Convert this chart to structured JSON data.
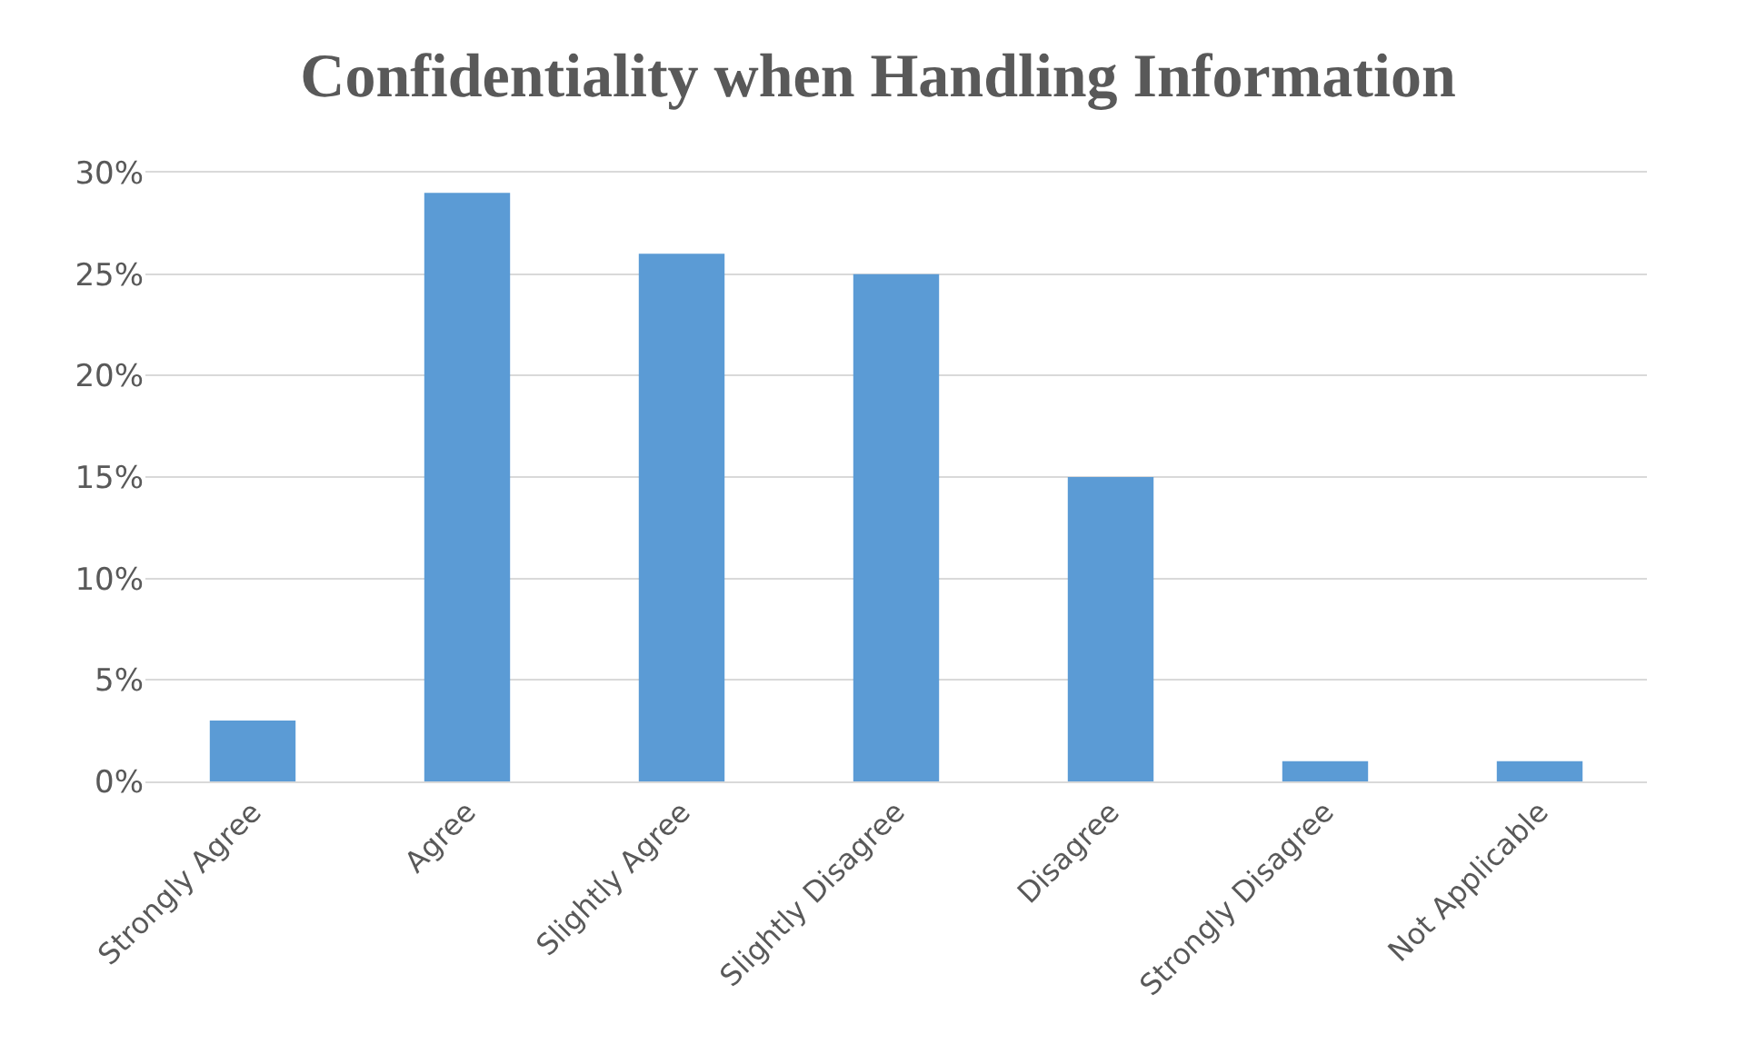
{
  "chart_data": {
    "type": "bar",
    "title": "Confidentiality when Handling Information",
    "categories": [
      "Strongly Agree",
      "Agree",
      "Slightly Agree",
      "Slightly Disagree",
      "Disagree",
      "Strongly Disagree",
      "Not Applicable"
    ],
    "values": [
      3,
      29,
      26,
      25,
      15,
      1,
      1
    ],
    "color": "#5b9bd5",
    "ylim": [
      0,
      30
    ],
    "yticks": [
      {
        "value": 0,
        "label": "0%"
      },
      {
        "value": 5,
        "label": "5%"
      },
      {
        "value": 10,
        "label": "10%"
      },
      {
        "value": 15,
        "label": "15%"
      },
      {
        "value": 20,
        "label": "20%"
      },
      {
        "value": 25,
        "label": "25%"
      },
      {
        "value": 30,
        "label": "30%"
      }
    ],
    "grid": "y"
  }
}
